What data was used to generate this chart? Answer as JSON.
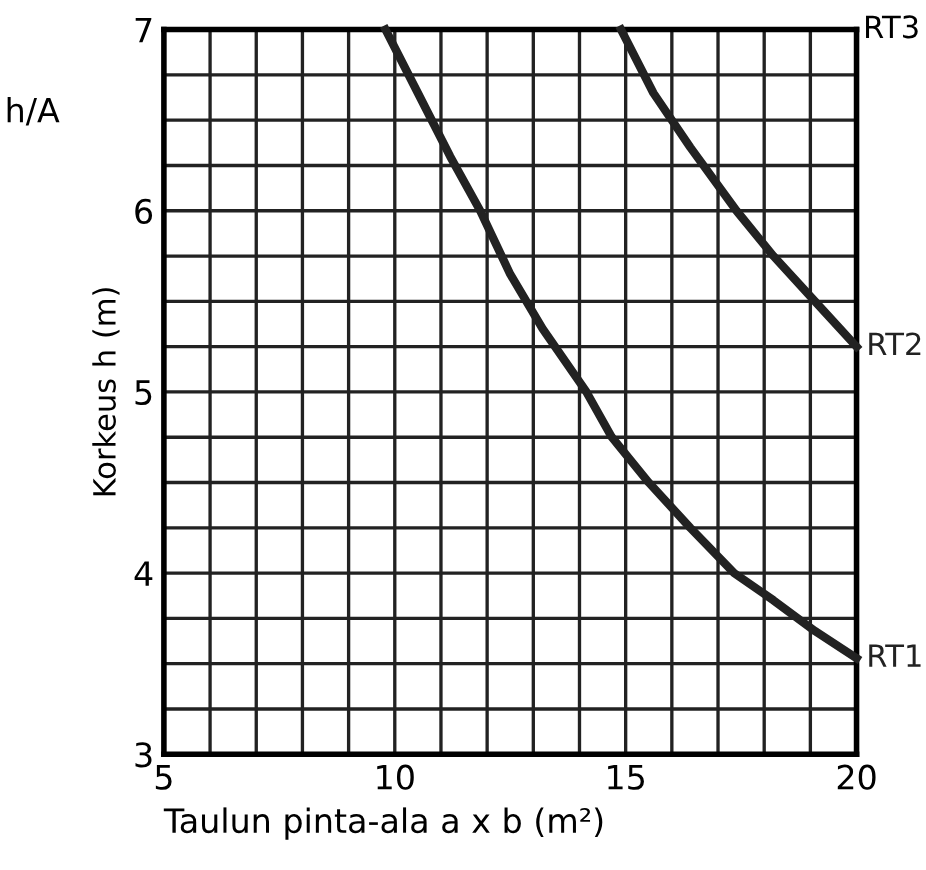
{
  "chart_data": {
    "type": "line",
    "xlabel": "Taulun pinta-ala a x b (m²)",
    "ylabel": "Korkeus h (m)",
    "annotations": [
      "h/A",
      "RT3"
    ],
    "series": [
      {
        "name": "RT1",
        "color": "#222222",
        "x": [
          9.8,
          10.5,
          11.2,
          11.85,
          12.5,
          13.2,
          14.15,
          14.7,
          15.5,
          16.4,
          17.35,
          18.2,
          19.1,
          20
        ],
        "values": [
          7,
          6.65,
          6.3,
          6,
          5.65,
          5.35,
          5,
          4.75,
          4.5,
          4.25,
          4,
          3.85,
          3.68,
          3.53
        ]
      },
      {
        "name": "RT2",
        "color": "#222222",
        "x": [
          14.9,
          15.6,
          16.4,
          17.4,
          18.2,
          19.1,
          20
        ],
        "values": [
          7,
          6.65,
          6.35,
          6,
          5.75,
          5.5,
          5.25
        ]
      }
    ],
    "marker": "none",
    "line_style": "solid",
    "grid": true,
    "legend": false,
    "xlim": [
      5,
      20
    ],
    "ylim": [
      3,
      7
    ],
    "xticks": [
      5,
      {
        "value": 6,
        "label": null
      },
      {
        "value": 7,
        "label": null
      },
      {
        "value": 8,
        "label": null
      },
      {
        "value": 9,
        "label": null
      },
      10,
      {
        "value": 11,
        "label": null
      },
      {
        "value": 12,
        "label": null
      },
      {
        "value": 13,
        "label": null
      },
      {
        "value": 14,
        "label": null
      },
      15,
      {
        "value": 16,
        "label": null
      },
      {
        "value": 17,
        "label": null
      },
      {
        "value": 18,
        "label": null
      },
      {
        "value": 19,
        "label": null
      },
      20
    ],
    "yticks": [
      3,
      {
        "value": 3.25,
        "label": null
      },
      {
        "value": 3.5,
        "label": null
      },
      {
        "value": 3.75,
        "label": null
      },
      4,
      {
        "value": 4.25,
        "label": null
      },
      {
        "value": 4.5,
        "label": null
      },
      {
        "value": 4.75,
        "label": null
      },
      5,
      {
        "value": 5.25,
        "label": null
      },
      {
        "value": 5.5,
        "label": null
      },
      {
        "value": 5.75,
        "label": null
      },
      6,
      {
        "value": 6.25,
        "label": null
      },
      {
        "value": 6.5,
        "label": null
      },
      {
        "value": 6.75,
        "label": null
      },
      7
    ]
  }
}
